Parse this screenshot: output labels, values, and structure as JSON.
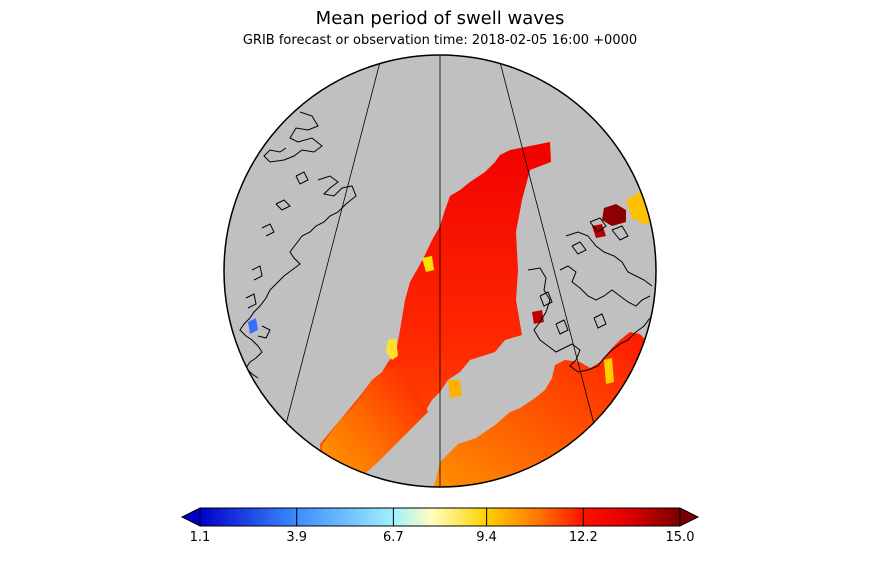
{
  "title": "Mean period of swell waves",
  "subtitle": "GRIB forecast or observation time: 2018-02-05 16:00 +0000",
  "colors": {
    "land": "#c0c0c0",
    "coast": "#000000",
    "ocean_field": "#f00000",
    "swell_mid": "#ff6000",
    "swell_low": "#ffa000"
  },
  "legend": {
    "ticks": [
      "1.1",
      "3.9",
      "6.7",
      "9.4",
      "12.2",
      "15.0"
    ],
    "min": 1.1,
    "max": 15.0,
    "stops": [
      {
        "value": 1.1,
        "color": "#0000c8"
      },
      {
        "value": 3.9,
        "color": "#3c8cff"
      },
      {
        "value": 6.7,
        "color": "#a0f0ff"
      },
      {
        "value": 7.8,
        "color": "#ffffc0"
      },
      {
        "value": 9.4,
        "color": "#ffd000"
      },
      {
        "value": 11.0,
        "color": "#ff7000"
      },
      {
        "value": 12.2,
        "color": "#ff1000"
      },
      {
        "value": 13.5,
        "color": "#e00000"
      },
      {
        "value": 15.0,
        "color": "#780000"
      }
    ],
    "under_color": "#0000c8",
    "over_color": "#780000"
  }
}
